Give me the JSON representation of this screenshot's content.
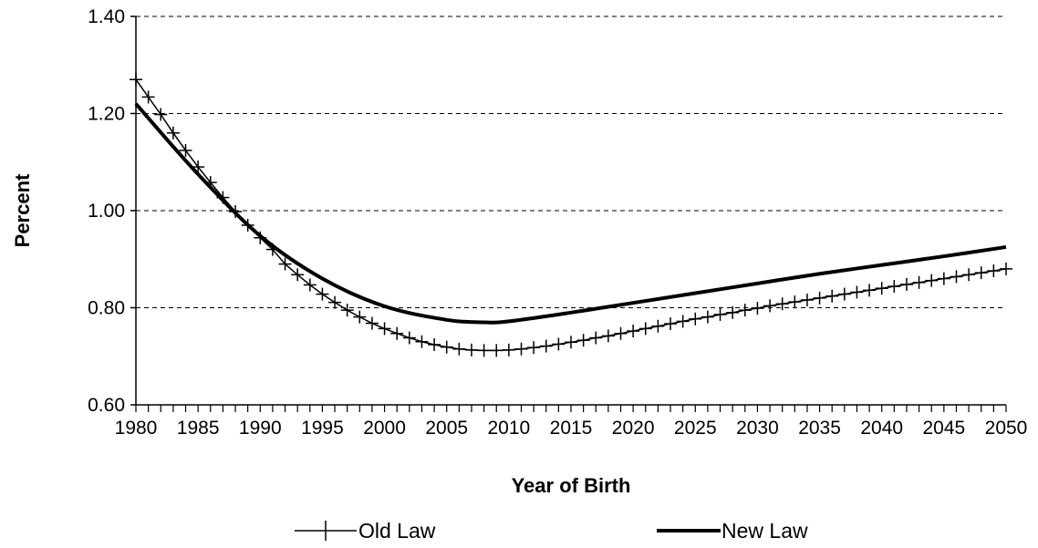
{
  "chart_data": {
    "type": "line",
    "xlabel": "Year of Birth",
    "ylabel": "Percent",
    "xlim": [
      1980,
      2050
    ],
    "ylim": [
      0.6,
      1.4
    ],
    "y_ticks": [
      "0.60",
      "0.80",
      "1.00",
      "1.20",
      "1.40"
    ],
    "x_ticks": [
      "1980",
      "1985",
      "1990",
      "1995",
      "2000",
      "2005",
      "2010",
      "2015",
      "2020",
      "2025",
      "2030",
      "2035",
      "2040",
      "2045",
      "2050"
    ],
    "grid": "horizontal dashed",
    "legend_position": "bottom",
    "series": [
      {
        "name": "Old Law",
        "style": "line with plus markers",
        "color": "#000000",
        "x": [
          1980,
          1981,
          1982,
          1983,
          1984,
          1985,
          1986,
          1987,
          1988,
          1989,
          1990,
          1991,
          1992,
          1993,
          1994,
          1995,
          1996,
          1997,
          1998,
          1999,
          2000,
          2001,
          2002,
          2003,
          2004,
          2005,
          2006,
          2007,
          2008,
          2009,
          2010,
          2011,
          2012,
          2013,
          2014,
          2015,
          2016,
          2017,
          2018,
          2019,
          2020,
          2021,
          2022,
          2023,
          2024,
          2025,
          2026,
          2027,
          2028,
          2029,
          2030,
          2031,
          2032,
          2033,
          2034,
          2035,
          2036,
          2037,
          2038,
          2039,
          2040,
          2041,
          2042,
          2043,
          2044,
          2045,
          2046,
          2047,
          2048,
          2049,
          2050
        ],
        "values": [
          1.27,
          1.234,
          1.198,
          1.16,
          1.124,
          1.09,
          1.058,
          1.027,
          0.998,
          0.97,
          0.944,
          0.92,
          0.89,
          0.868,
          0.847,
          0.828,
          0.811,
          0.795,
          0.781,
          0.768,
          0.757,
          0.747,
          0.738,
          0.73,
          0.724,
          0.719,
          0.715,
          0.713,
          0.712,
          0.712,
          0.713,
          0.715,
          0.718,
          0.721,
          0.725,
          0.729,
          0.733,
          0.738,
          0.742,
          0.747,
          0.752,
          0.757,
          0.762,
          0.767,
          0.772,
          0.777,
          0.781,
          0.786,
          0.79,
          0.795,
          0.799,
          0.804,
          0.808,
          0.812,
          0.816,
          0.82,
          0.824,
          0.828,
          0.832,
          0.836,
          0.84,
          0.844,
          0.848,
          0.852,
          0.856,
          0.86,
          0.864,
          0.868,
          0.872,
          0.876,
          0.88
        ]
      },
      {
        "name": "New Law",
        "style": "thick solid line",
        "color": "#000000",
        "x": [
          1980,
          1985,
          1990,
          1995,
          2000,
          2005,
          2008,
          2010,
          2015,
          2020,
          2025,
          2030,
          2035,
          2040,
          2045,
          2050
        ],
        "values": [
          1.22,
          1.075,
          0.948,
          0.86,
          0.803,
          0.775,
          0.77,
          0.772,
          0.79,
          0.81,
          0.83,
          0.85,
          0.87,
          0.888,
          0.906,
          0.925
        ]
      }
    ]
  }
}
